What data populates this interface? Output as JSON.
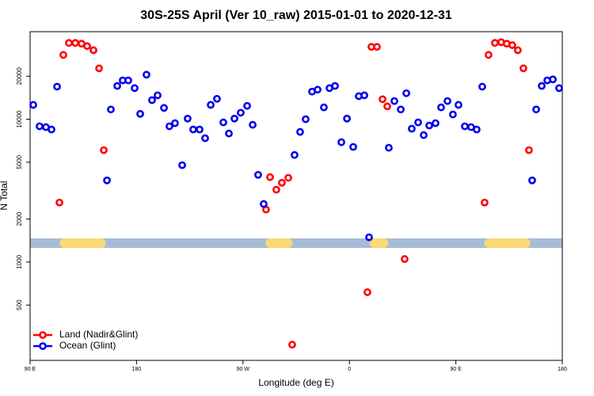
{
  "chart_data": {
    "type": "scatter",
    "title": "30S-25S April (Ver 10_raw)   2015-01-01 to 2020-12-31",
    "xlabel": "Longitude (deg E)",
    "ylabel": "N Total",
    "xlim": [
      90,
      540
    ],
    "ylim": [
      205,
      41000
    ],
    "log_y": true,
    "xticks": [
      {
        "value": 90,
        "label": "90 E"
      },
      {
        "value": 180,
        "label": "180"
      },
      {
        "value": 270,
        "label": "90 W"
      },
      {
        "value": 360,
        "label": "0"
      },
      {
        "value": 450,
        "label": "90 E"
      },
      {
        "value": 540,
        "label": "180"
      }
    ],
    "yticks": [
      500,
      1000,
      2000,
      5000,
      10000,
      20000
    ],
    "legend": "lower left",
    "mask": {
      "ocean_color": "#a5bbd8",
      "land_color": "#fad874",
      "land_segments": [
        [
          115,
          154
        ],
        [
          289,
          312
        ],
        [
          377,
          393
        ],
        [
          474,
          513
        ]
      ]
    },
    "series": [
      {
        "name": "Land (Nadir&Glint)",
        "color": "#ff0000",
        "x": [
          114.8,
          118.1,
          122.8,
          128.2,
          133.5,
          138.2,
          143.6,
          148.3,
          152.3,
          289.5,
          292.9,
          298.2,
          302.9,
          308.3,
          311.6,
          375.2,
          378.6,
          383.3,
          388.0,
          392.0,
          406.7,
          474.3,
          477.6,
          483.0,
          488.3,
          493.0,
          497.7,
          502.4,
          507.1,
          511.8
        ],
        "values": [
          2610,
          28200,
          34200,
          34200,
          33800,
          32500,
          30400,
          22700,
          6070,
          2330,
          3930,
          3210,
          3590,
          3890,
          264,
          615,
          32100,
          32100,
          13800,
          12300,
          1050,
          2610,
          28200,
          34200,
          34600,
          33800,
          33000,
          30400,
          22700,
          6070
        ]
      },
      {
        "name": "Ocean (Glint)",
        "color": "#0000ee",
        "x": [
          92.7,
          98.0,
          103.4,
          108.1,
          112.8,
          155.0,
          158.3,
          163.7,
          168.3,
          173.0,
          178.4,
          183.1,
          188.4,
          193.1,
          197.8,
          203.2,
          207.8,
          212.5,
          218.6,
          223.2,
          227.9,
          233.3,
          238.0,
          242.7,
          248.0,
          253.4,
          258.1,
          262.8,
          268.1,
          273.5,
          278.2,
          282.8,
          287.5,
          313.6,
          318.3,
          323.0,
          328.4,
          333.1,
          338.4,
          343.1,
          347.8,
          353.2,
          357.9,
          363.2,
          367.9,
          372.6,
          376.6,
          393.3,
          398.0,
          403.4,
          408.1,
          412.7,
          418.1,
          422.8,
          427.5,
          432.8,
          437.5,
          442.9,
          447.5,
          452.2,
          457.6,
          462.9,
          467.6,
          472.3,
          514.5,
          517.9,
          522.6,
          527.3,
          532.0,
          537.3
        ],
        "values": [
          12600,
          8920,
          8800,
          8470,
          16900,
          3730,
          11700,
          17100,
          18700,
          18700,
          16500,
          10900,
          20500,
          13600,
          14700,
          12000,
          8920,
          9380,
          4770,
          10100,
          8470,
          8470,
          7360,
          12600,
          13900,
          9500,
          7940,
          10100,
          11100,
          12400,
          9140,
          4080,
          2550,
          5620,
          8150,
          10000,
          15600,
          16100,
          12100,
          16500,
          17100,
          6900,
          10100,
          6400,
          14500,
          14700,
          1490,
          6310,
          13400,
          11700,
          15200,
          8580,
          9500,
          7740,
          9030,
          9380,
          12100,
          13400,
          10800,
          12600,
          8920,
          8800,
          8470,
          16900,
          3730,
          11700,
          17100,
          18700,
          19000,
          16500
        ]
      }
    ]
  }
}
